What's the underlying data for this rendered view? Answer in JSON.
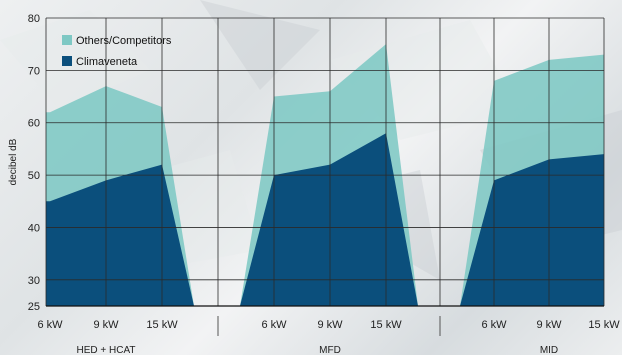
{
  "chart_data": {
    "type": "area",
    "ylabel": "decibel dB",
    "ylim": [
      25,
      80
    ],
    "yticks": [
      25,
      30,
      40,
      50,
      60,
      70,
      80
    ],
    "grid": true,
    "legend_position": "top-left",
    "groups": [
      {
        "label": "HED + HCAT",
        "x": [
          "6 kW",
          "9 kW",
          "15 kW"
        ]
      },
      {
        "label": "MFD",
        "x": [
          "6 kW",
          "9 kW",
          "15 kW"
        ]
      },
      {
        "label": "MID",
        "x": [
          "6 kW",
          "9 kW",
          "15 kW"
        ]
      }
    ],
    "series": [
      {
        "name": "Others/Competitors",
        "color": "#7ec8c4",
        "values": [
          [
            62,
            67,
            63
          ],
          [
            65,
            66,
            75
          ],
          [
            68,
            72,
            73
          ]
        ]
      },
      {
        "name": "Climaveneta",
        "color": "#0b4f7c",
        "values": [
          [
            45,
            49,
            52
          ],
          [
            50,
            52,
            58
          ],
          [
            49,
            53,
            54
          ]
        ]
      }
    ]
  }
}
